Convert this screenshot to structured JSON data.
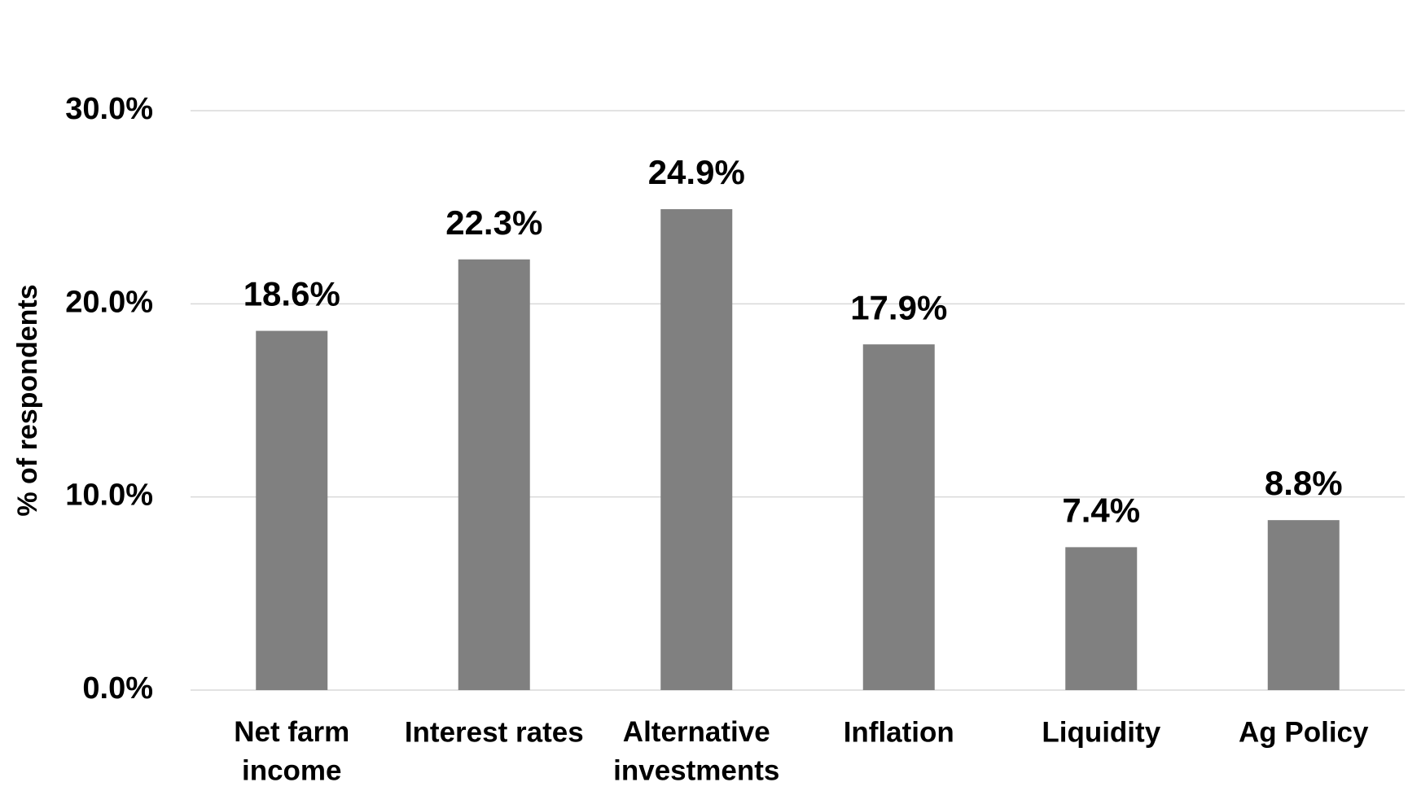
{
  "chart_data": {
    "type": "bar",
    "y_label": "% of respondents",
    "categories": [
      "Net farm income",
      "Interest rates",
      "Alternative investments",
      "Inflation",
      "Liquidity",
      "Ag Policy"
    ],
    "values": [
      18.6,
      22.3,
      24.9,
      17.9,
      7.4,
      8.8
    ],
    "value_labels": [
      "18.6%",
      "22.3%",
      "24.9%",
      "17.9%",
      "7.4%",
      "8.8%"
    ],
    "color": "#808080",
    "ylim": [
      0,
      30
    ],
    "yticks": [
      {
        "value": 0,
        "label": "0.0%"
      },
      {
        "value": 10,
        "label": "10.0%"
      },
      {
        "value": 20,
        "label": "20.0%"
      },
      {
        "value": 30,
        "label": "30.0%"
      }
    ],
    "grid": true
  }
}
